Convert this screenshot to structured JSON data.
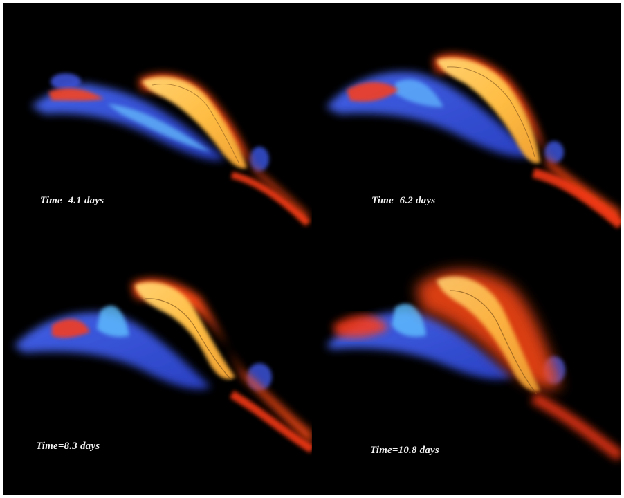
{
  "panels": [
    {
      "time_label": "Time=4.1 days"
    },
    {
      "time_label": "Time=6.2 days"
    },
    {
      "time_label": "Time=8.3 days"
    },
    {
      "time_label": "Time=10.8 days"
    }
  ],
  "colors": {
    "background": "#000000",
    "blue_region": "#3a5ae8",
    "cyan_core": "#5fb8ff",
    "orange_edge": "#ff5a1e",
    "yellow_core": "#ffc54a",
    "label": "#f2f2f2"
  }
}
